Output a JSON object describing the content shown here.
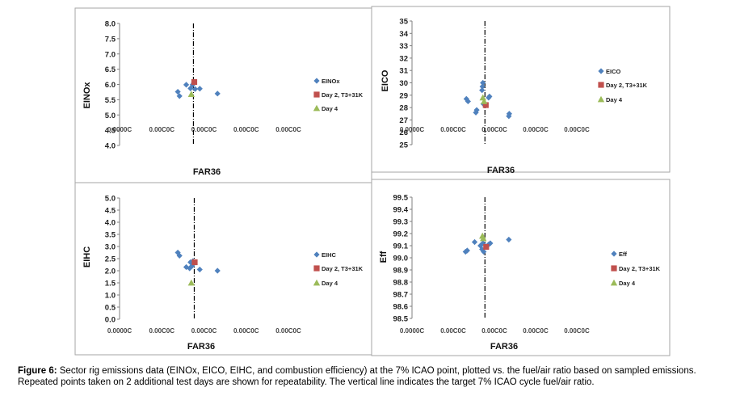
{
  "caption": {
    "label": "Figure 6:",
    "text": "Sector rig emissions data (EINOx, EICO, EIHC, and combustion efficiency) at the 7% ICAO point, plotted vs. the fuel/air ratio based on sampled emissions. Repeated points taken on 2 additional test days are shown for repeatability. The vertical line indicates the target 7% ICAO cycle fuel/air ratio."
  },
  "chart_data": [
    {
      "type": "scatter",
      "title": "",
      "xlabel": "FAR36",
      "ylabel": "EINOx",
      "x_tick_labels": [
        "0.0000C",
        "0.00C0C",
        "0.00C0C",
        "0.00C0C",
        "0.00C0C"
      ],
      "x_index_range": [
        0,
        4
      ],
      "ylim": [
        4.0,
        8.0
      ],
      "y_ticks": [
        "4.0",
        "4.5",
        "5.0",
        "5.5",
        "6.0",
        "6.5",
        "7.0",
        "7.5",
        "8.0"
      ],
      "target_line_x": 1.75,
      "legend": [
        "EINOx",
        "Day 2, T3+31K",
        "Day 4"
      ],
      "series": [
        {
          "name": "EINOx",
          "marker": "diamond",
          "color": "#4f81bd",
          "x": [
            1.38,
            1.42,
            1.58,
            1.68,
            1.73,
            1.76,
            1.79,
            1.9,
            2.32
          ],
          "y": [
            5.76,
            5.62,
            5.99,
            5.87,
            5.99,
            6.06,
            5.85,
            5.86,
            5.7
          ]
        },
        {
          "name": "Day 2, T3+31K",
          "marker": "square",
          "color": "#c0504d",
          "x": [
            1.77
          ],
          "y": [
            6.08
          ]
        },
        {
          "name": "Day 4",
          "marker": "triangle",
          "color": "#9bbb59",
          "x": [
            1.7
          ],
          "y": [
            5.68
          ]
        }
      ]
    },
    {
      "type": "scatter",
      "title": "",
      "xlabel": "FAR36",
      "ylabel": "EICO",
      "x_tick_labels": [
        "0.0000C",
        "0.00C0C",
        "0.00C0C",
        "0.00C0C",
        "0.00C0C"
      ],
      "x_index_range": [
        0,
        4
      ],
      "ylim": [
        25,
        35
      ],
      "y_ticks": [
        "25",
        "26",
        "27",
        "28",
        "29",
        "30",
        "31",
        "32",
        "33",
        "34",
        "35"
      ],
      "target_line_x": 1.77,
      "legend": [
        "EICO",
        "Day 2, T3+31K",
        "Day 4"
      ],
      "series": [
        {
          "name": "EICO",
          "marker": "diamond",
          "color": "#4f81bd",
          "x": [
            1.32,
            1.36,
            1.55,
            1.57,
            1.7,
            1.71,
            1.72,
            1.73,
            1.86,
            1.88,
            2.35,
            2.36
          ],
          "y": [
            28.7,
            28.5,
            27.6,
            27.8,
            29.4,
            29.7,
            30.0,
            28.3,
            28.8,
            28.9,
            27.3,
            27.5
          ]
        },
        {
          "name": "Day 2, T3+31K",
          "marker": "square",
          "color": "#c0504d",
          "x": [
            1.79
          ],
          "y": [
            28.2
          ]
        },
        {
          "name": "Day 4",
          "marker": "triangle",
          "color": "#9bbb59",
          "x": [
            1.72,
            1.75
          ],
          "y": [
            28.8,
            28.5
          ]
        }
      ]
    },
    {
      "type": "scatter",
      "title": "",
      "xlabel": "FAR36",
      "ylabel": "EIHC",
      "x_tick_labels": [
        "0.0000C",
        "0.00C0C",
        "0.00C0C",
        "0.00C0C",
        "0.00C0C"
      ],
      "x_index_range": [
        0,
        4
      ],
      "ylim": [
        0.0,
        5.0
      ],
      "y_ticks": [
        "0.0",
        "0.5",
        "1.0",
        "1.5",
        "2.0",
        "2.5",
        "3.0",
        "3.5",
        "4.0",
        "4.5",
        "5.0"
      ],
      "target_line_x": 1.77,
      "legend": [
        "EIHC",
        "Day 2, T3+31K",
        "Day 4"
      ],
      "series": [
        {
          "name": "EIHC",
          "marker": "diamond",
          "color": "#4f81bd",
          "x": [
            1.38,
            1.42,
            1.58,
            1.66,
            1.68,
            1.72,
            1.74,
            1.9,
            2.32
          ],
          "y": [
            2.75,
            2.62,
            2.15,
            2.1,
            2.35,
            2.2,
            2.4,
            2.05,
            2.0
          ]
        },
        {
          "name": "Day 2, T3+31K",
          "marker": "square",
          "color": "#c0504d",
          "x": [
            1.78
          ],
          "y": [
            2.35
          ]
        },
        {
          "name": "Day 4",
          "marker": "triangle",
          "color": "#9bbb59",
          "x": [
            1.7
          ],
          "y": [
            1.5
          ]
        }
      ]
    },
    {
      "type": "scatter",
      "title": "",
      "xlabel": "FAR36",
      "ylabel": "Eff",
      "x_tick_labels": [
        "0.0000C",
        "0.00C0C",
        "0.00C0C",
        "0.00C0C",
        "0.00C0C"
      ],
      "x_index_range": [
        0,
        4
      ],
      "ylim": [
        98.5,
        99.5
      ],
      "y_ticks": [
        "98.5",
        "98.6",
        "98.7",
        "98.8",
        "98.9",
        "99.0",
        "99.1",
        "99.2",
        "99.3",
        "99.4",
        "99.5"
      ],
      "target_line_x": 1.77,
      "legend": [
        "Eff",
        "Day 2, T3+31K",
        "Day 4"
      ],
      "series": [
        {
          "name": "Eff",
          "marker": "diamond",
          "color": "#4f81bd",
          "x": [
            1.3,
            1.34,
            1.52,
            1.66,
            1.7,
            1.72,
            1.74,
            1.86,
            1.9,
            2.35
          ],
          "y": [
            99.05,
            99.06,
            99.13,
            99.1,
            99.07,
            99.12,
            99.05,
            99.11,
            99.12,
            99.15
          ]
        },
        {
          "name": "Day 2, T3+31K",
          "marker": "square",
          "color": "#c0504d",
          "x": [
            1.8
          ],
          "y": [
            99.09
          ]
        },
        {
          "name": "Day 4",
          "marker": "triangle",
          "color": "#9bbb59",
          "x": [
            1.71,
            1.73
          ],
          "y": [
            99.18,
            99.16
          ]
        }
      ]
    }
  ]
}
